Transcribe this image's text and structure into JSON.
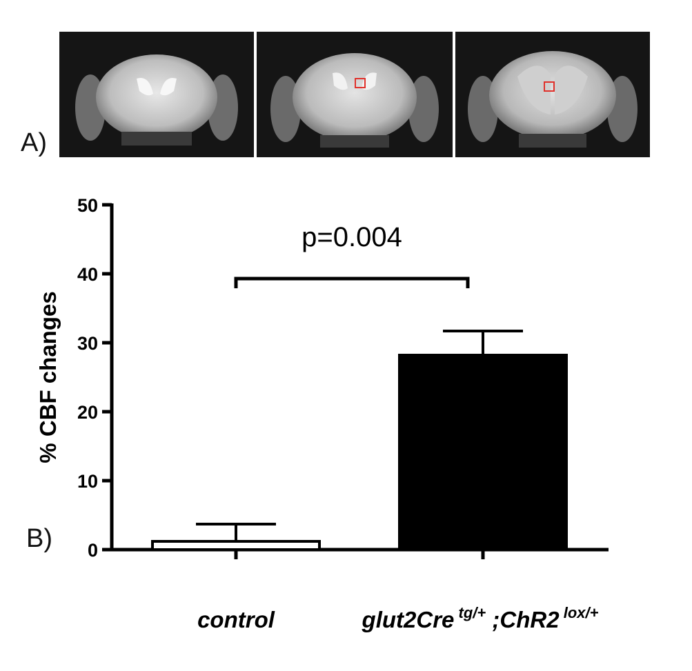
{
  "panel_a": {
    "label": "A)",
    "images": [
      {
        "roi_marker": false
      },
      {
        "roi_marker": true
      },
      {
        "roi_marker": true
      }
    ],
    "roi_color": "#e0302a"
  },
  "panel_b": {
    "label": "B)"
  },
  "chart_data": {
    "type": "bar",
    "categories": [
      "control",
      "glut2Cre"
    ],
    "category_superscripts": [
      [],
      [
        {
          "base": "glut2Cre",
          "sup": "tg/+"
        },
        {
          "base": ";ChR2",
          "sup": "lox/+"
        }
      ]
    ],
    "values": [
      1.2,
      28.2
    ],
    "errors": [
      2.5,
      3.5
    ],
    "bar_colors": [
      "#ffffff",
      "#000000"
    ],
    "ylabel": "% CBF changes",
    "xlabel": "",
    "ylim": [
      0,
      50
    ],
    "yticks": [
      0,
      10,
      20,
      30,
      40,
      50
    ],
    "annotation": {
      "text": "p=0.004",
      "bracket_height": 39.3
    },
    "grid": false
  }
}
